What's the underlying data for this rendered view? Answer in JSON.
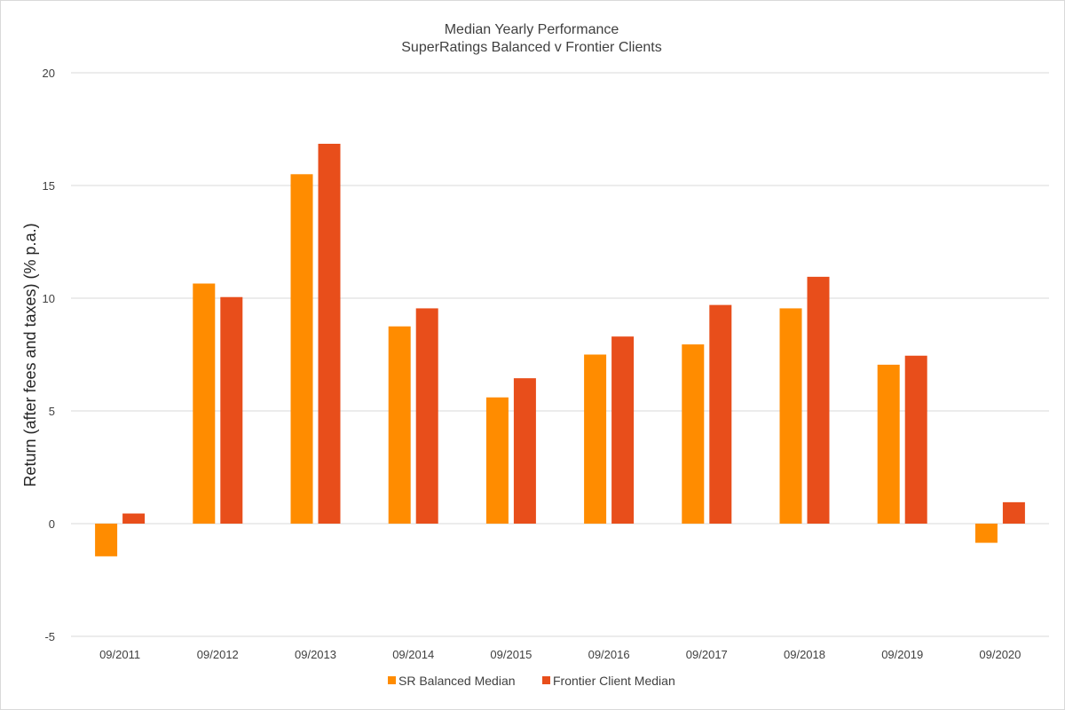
{
  "chart_data": {
    "type": "bar",
    "title": "Median Yearly Performance",
    "subtitle": "SuperRatings Balanced v Frontier Clients",
    "xlabel": "",
    "ylabel": "Return (after fees and taxes) (% p.a.)",
    "ylim": [
      -5,
      20
    ],
    "yticks": [
      -5,
      0,
      5,
      10,
      15,
      20
    ],
    "grid": true,
    "legend_position": "bottom",
    "categories": [
      "09/2011",
      "09/2012",
      "09/2013",
      "09/2014",
      "09/2015",
      "09/2016",
      "09/2017",
      "09/2018",
      "09/2019",
      "09/2020"
    ],
    "series": [
      {
        "name": "SR Balanced Median",
        "color": "#FF8C00",
        "values": [
          -1.45,
          10.65,
          15.5,
          8.75,
          5.6,
          7.5,
          7.95,
          9.55,
          7.05,
          -0.85
        ]
      },
      {
        "name": "Frontier Client Median",
        "color": "#E84E1B",
        "values": [
          0.45,
          10.05,
          16.85,
          9.55,
          6.45,
          8.3,
          9.7,
          10.95,
          7.45,
          0.95
        ]
      }
    ]
  }
}
